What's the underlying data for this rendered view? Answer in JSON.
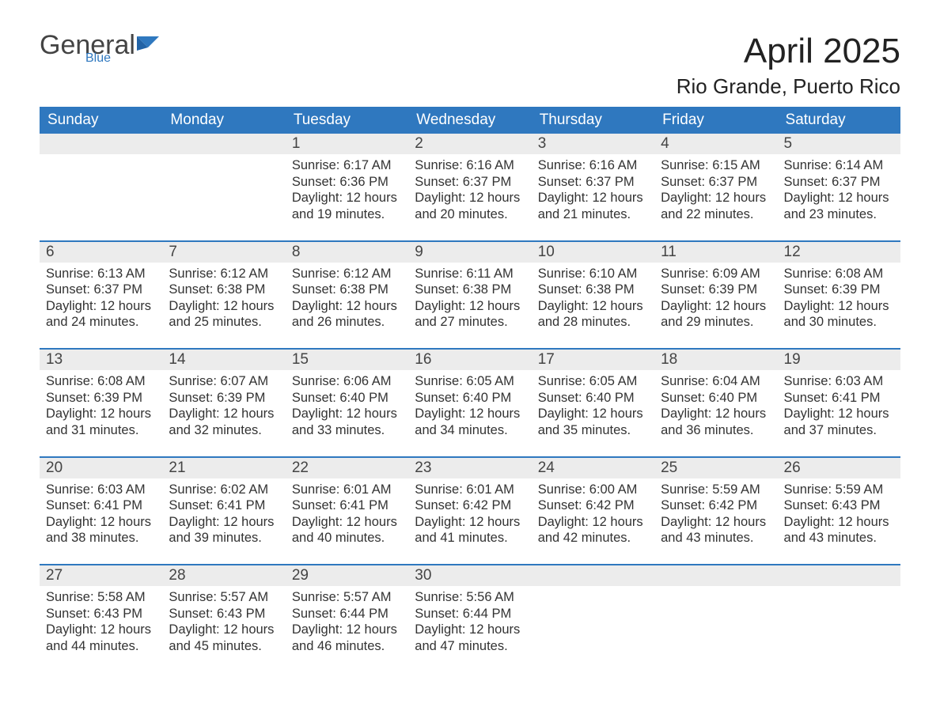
{
  "logo": {
    "text_general": "General",
    "text_blue": "Blue",
    "flag_color": "#2f78bf"
  },
  "title": "April 2025",
  "location": "Rio Grande, Puerto Rico",
  "colors": {
    "header_bg": "#2f78bf",
    "header_text": "#ffffff",
    "daynum_bg": "#ececec",
    "body_text": "#333333",
    "week_border": "#2f78bf"
  },
  "days_of_week": [
    "Sunday",
    "Monday",
    "Tuesday",
    "Wednesday",
    "Thursday",
    "Friday",
    "Saturday"
  ],
  "labels": {
    "sunrise": "Sunrise: ",
    "sunset": "Sunset: ",
    "daylight": "Daylight: "
  },
  "weeks": [
    [
      null,
      null,
      {
        "n": "1",
        "sr": "6:17 AM",
        "ss": "6:36 PM",
        "dl": "12 hours and 19 minutes."
      },
      {
        "n": "2",
        "sr": "6:16 AM",
        "ss": "6:37 PM",
        "dl": "12 hours and 20 minutes."
      },
      {
        "n": "3",
        "sr": "6:16 AM",
        "ss": "6:37 PM",
        "dl": "12 hours and 21 minutes."
      },
      {
        "n": "4",
        "sr": "6:15 AM",
        "ss": "6:37 PM",
        "dl": "12 hours and 22 minutes."
      },
      {
        "n": "5",
        "sr": "6:14 AM",
        "ss": "6:37 PM",
        "dl": "12 hours and 23 minutes."
      }
    ],
    [
      {
        "n": "6",
        "sr": "6:13 AM",
        "ss": "6:37 PM",
        "dl": "12 hours and 24 minutes."
      },
      {
        "n": "7",
        "sr": "6:12 AM",
        "ss": "6:38 PM",
        "dl": "12 hours and 25 minutes."
      },
      {
        "n": "8",
        "sr": "6:12 AM",
        "ss": "6:38 PM",
        "dl": "12 hours and 26 minutes."
      },
      {
        "n": "9",
        "sr": "6:11 AM",
        "ss": "6:38 PM",
        "dl": "12 hours and 27 minutes."
      },
      {
        "n": "10",
        "sr": "6:10 AM",
        "ss": "6:38 PM",
        "dl": "12 hours and 28 minutes."
      },
      {
        "n": "11",
        "sr": "6:09 AM",
        "ss": "6:39 PM",
        "dl": "12 hours and 29 minutes."
      },
      {
        "n": "12",
        "sr": "6:08 AM",
        "ss": "6:39 PM",
        "dl": "12 hours and 30 minutes."
      }
    ],
    [
      {
        "n": "13",
        "sr": "6:08 AM",
        "ss": "6:39 PM",
        "dl": "12 hours and 31 minutes."
      },
      {
        "n": "14",
        "sr": "6:07 AM",
        "ss": "6:39 PM",
        "dl": "12 hours and 32 minutes."
      },
      {
        "n": "15",
        "sr": "6:06 AM",
        "ss": "6:40 PM",
        "dl": "12 hours and 33 minutes."
      },
      {
        "n": "16",
        "sr": "6:05 AM",
        "ss": "6:40 PM",
        "dl": "12 hours and 34 minutes."
      },
      {
        "n": "17",
        "sr": "6:05 AM",
        "ss": "6:40 PM",
        "dl": "12 hours and 35 minutes."
      },
      {
        "n": "18",
        "sr": "6:04 AM",
        "ss": "6:40 PM",
        "dl": "12 hours and 36 minutes."
      },
      {
        "n": "19",
        "sr": "6:03 AM",
        "ss": "6:41 PM",
        "dl": "12 hours and 37 minutes."
      }
    ],
    [
      {
        "n": "20",
        "sr": "6:03 AM",
        "ss": "6:41 PM",
        "dl": "12 hours and 38 minutes."
      },
      {
        "n": "21",
        "sr": "6:02 AM",
        "ss": "6:41 PM",
        "dl": "12 hours and 39 minutes."
      },
      {
        "n": "22",
        "sr": "6:01 AM",
        "ss": "6:41 PM",
        "dl": "12 hours and 40 minutes."
      },
      {
        "n": "23",
        "sr": "6:01 AM",
        "ss": "6:42 PM",
        "dl": "12 hours and 41 minutes."
      },
      {
        "n": "24",
        "sr": "6:00 AM",
        "ss": "6:42 PM",
        "dl": "12 hours and 42 minutes."
      },
      {
        "n": "25",
        "sr": "5:59 AM",
        "ss": "6:42 PM",
        "dl": "12 hours and 43 minutes."
      },
      {
        "n": "26",
        "sr": "5:59 AM",
        "ss": "6:43 PM",
        "dl": "12 hours and 43 minutes."
      }
    ],
    [
      {
        "n": "27",
        "sr": "5:58 AM",
        "ss": "6:43 PM",
        "dl": "12 hours and 44 minutes."
      },
      {
        "n": "28",
        "sr": "5:57 AM",
        "ss": "6:43 PM",
        "dl": "12 hours and 45 minutes."
      },
      {
        "n": "29",
        "sr": "5:57 AM",
        "ss": "6:44 PM",
        "dl": "12 hours and 46 minutes."
      },
      {
        "n": "30",
        "sr": "5:56 AM",
        "ss": "6:44 PM",
        "dl": "12 hours and 47 minutes."
      },
      null,
      null,
      null
    ]
  ]
}
